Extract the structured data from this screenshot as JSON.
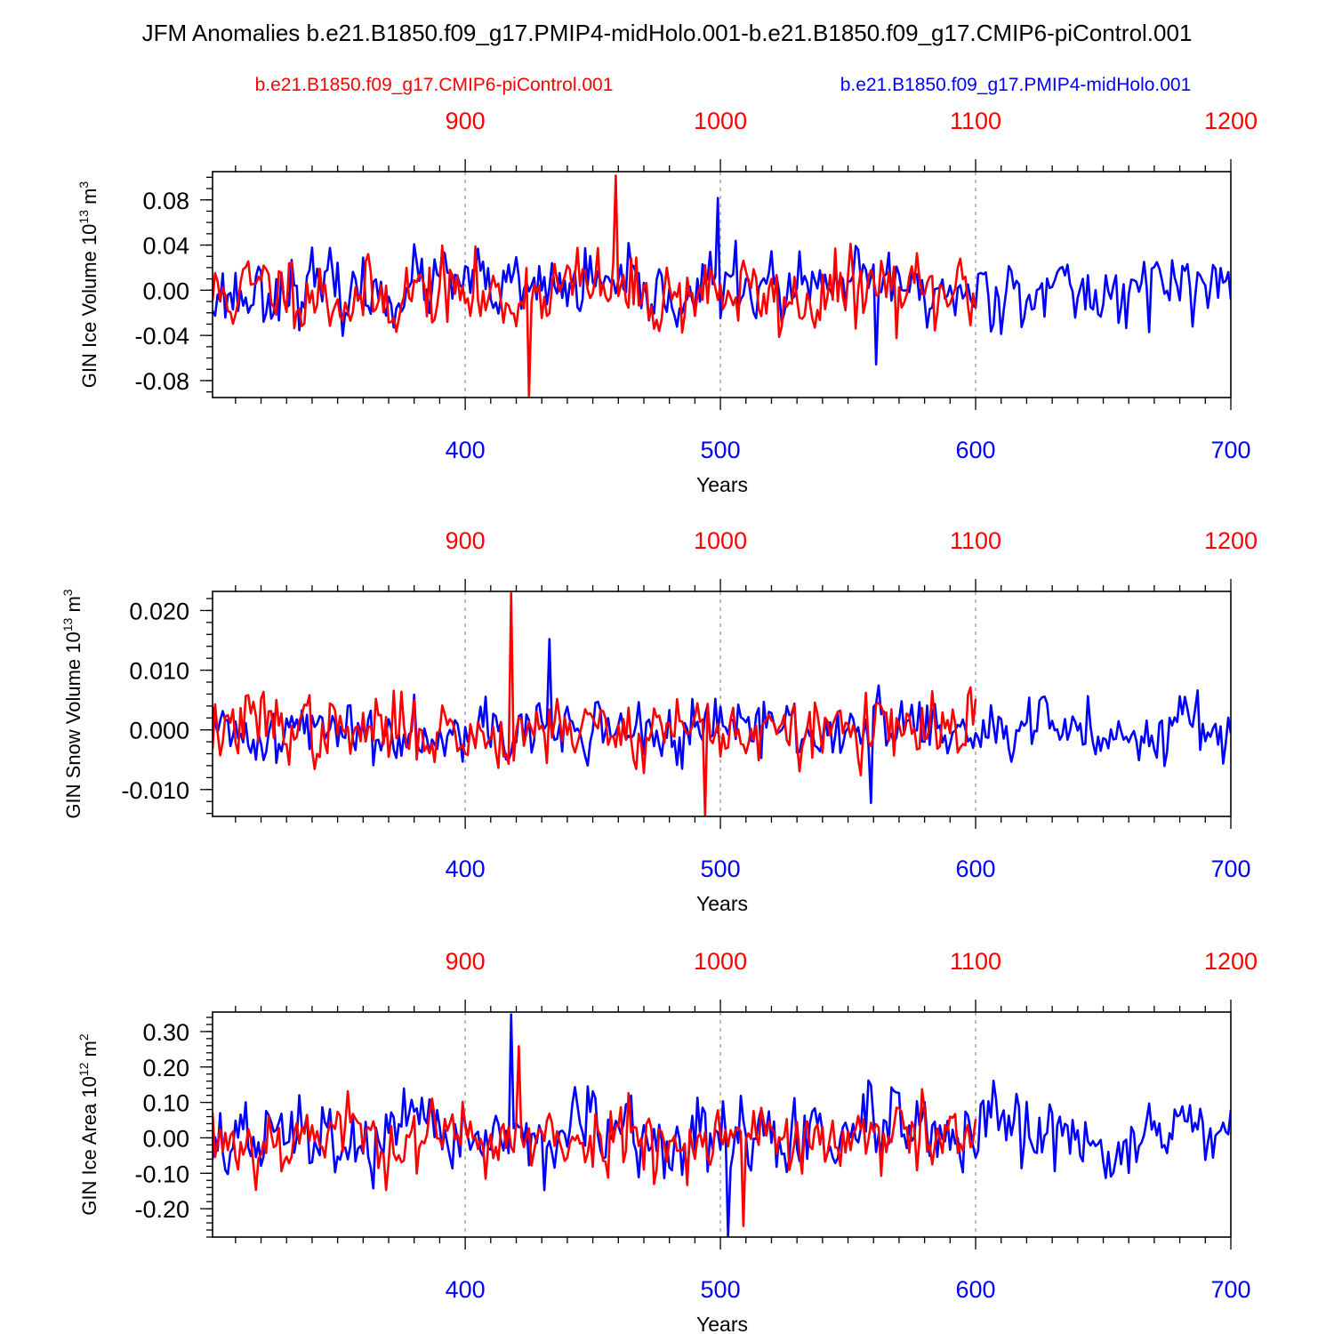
{
  "title": "JFM Anomalies b.e21.B1850.f09_g17.PMIP4-midHolo.001-b.e21.B1850.f09_g17.CMIP6-piControl.001",
  "legend": {
    "left_label": "b.e21.B1850.f09_g17.CMIP6-piControl.001",
    "right_label": "b.e21.B1850.f09_g17.PMIP4-midHolo.001"
  },
  "colors": {
    "control": "#ff0000",
    "midholo": "#0000ff",
    "axis": "#000000",
    "grid": "#999999"
  },
  "chart_data": [
    {
      "type": "line",
      "ylabel": "GIN Ice Volume 10",
      "ylabel_sup": "13",
      "ylabel_unit": " m",
      "ylabel_unit_sup": "3",
      "xlabel": "Years",
      "ylim": [
        -0.095,
        0.105
      ],
      "yticks": [
        -0.08,
        -0.04,
        0.0,
        0.04,
        0.08
      ],
      "ytick_labels": [
        "-0.08",
        "-0.04",
        "0.00",
        "0.04",
        "0.08"
      ],
      "yminor_step": 0.01,
      "x_bottom": {
        "range": [
          301,
          700
        ],
        "ticks": [
          400,
          500,
          600,
          700
        ],
        "labels": [
          "400",
          "500",
          "600",
          "700"
        ]
      },
      "x_top": {
        "range": [
          801,
          1200
        ],
        "ticks": [
          900,
          1000,
          1100,
          1200
        ],
        "labels": [
          "900",
          "1000",
          "1100",
          "1200"
        ]
      },
      "gridlines_at": [
        400,
        500,
        600
      ],
      "series": [
        {
          "name": "b.e21.B1850.f09_g17.CMIP6-piControl.001",
          "color": "#ff0000",
          "x_start": 801,
          "x_end": 1100,
          "amp": 0.03,
          "max": 0.102,
          "min": -0.094,
          "seed": 11,
          "bias": -0.003
        },
        {
          "name": "b.e21.B1850.f09_g17.PMIP4-midHolo.001",
          "color": "#0000ff",
          "x_start": 301,
          "x_end": 700,
          "amp": 0.026,
          "max": 0.082,
          "min": -0.066,
          "seed": 23,
          "bias": 0.001
        }
      ]
    },
    {
      "type": "line",
      "ylabel": "GIN Snow Volume 10",
      "ylabel_sup": "13",
      "ylabel_unit": " m",
      "ylabel_unit_sup": "3",
      "xlabel": "Years",
      "ylim": [
        -0.0145,
        0.0232
      ],
      "yticks": [
        -0.01,
        0.0,
        0.01,
        0.02
      ],
      "ytick_labels": [
        "-0.010",
        "0.000",
        "0.010",
        "0.020"
      ],
      "yminor_step": 0.002,
      "x_bottom": {
        "range": [
          301,
          700
        ],
        "ticks": [
          400,
          500,
          600,
          700
        ],
        "labels": [
          "400",
          "500",
          "600",
          "700"
        ]
      },
      "x_top": {
        "range": [
          801,
          1200
        ],
        "ticks": [
          900,
          1000,
          1100,
          1200
        ],
        "labels": [
          "900",
          "1000",
          "1100",
          "1200"
        ]
      },
      "gridlines_at": [
        400,
        500,
        600
      ],
      "series": [
        {
          "name": "b.e21.B1850.f09_g17.CMIP6-piControl.001",
          "color": "#ff0000",
          "x_start": 801,
          "x_end": 1100,
          "amp": 0.005,
          "max": 0.023,
          "min": -0.0145,
          "seed": 37,
          "bias": 0.0
        },
        {
          "name": "b.e21.B1850.f09_g17.PMIP4-midHolo.001",
          "color": "#0000ff",
          "x_start": 301,
          "x_end": 700,
          "amp": 0.0045,
          "max": 0.0153,
          "min": -0.0123,
          "seed": 41,
          "bias": 0.0
        }
      ]
    },
    {
      "type": "line",
      "ylabel": "GIN Ice Area 10",
      "ylabel_sup": "12",
      "ylabel_unit": " m",
      "ylabel_unit_sup": "2",
      "xlabel": "Years",
      "ylim": [
        -0.28,
        0.355
      ],
      "yticks": [
        -0.2,
        -0.1,
        0.0,
        0.1,
        0.2,
        0.3
      ],
      "ytick_labels": [
        "-0.20",
        "-0.10",
        "0.00",
        "0.10",
        "0.20",
        "0.30"
      ],
      "yminor_step": 0.02,
      "x_bottom": {
        "range": [
          301,
          700
        ],
        "ticks": [
          400,
          500,
          600,
          700
        ],
        "labels": [
          "400",
          "500",
          "600",
          "700"
        ]
      },
      "x_top": {
        "range": [
          801,
          1200
        ],
        "ticks": [
          900,
          1000,
          1100,
          1200
        ],
        "labels": [
          "900",
          "1000",
          "1100",
          "1200"
        ]
      },
      "gridlines_at": [
        400,
        500,
        600
      ],
      "series": [
        {
          "name": "b.e21.B1850.f09_g17.CMIP6-piControl.001",
          "color": "#ff0000",
          "x_start": 801,
          "x_end": 1100,
          "amp": 0.09,
          "max": 0.26,
          "min": -0.25,
          "seed": 53,
          "bias": 0.0
        },
        {
          "name": "b.e21.B1850.f09_g17.PMIP4-midHolo.001",
          "color": "#0000ff",
          "x_start": 301,
          "x_end": 700,
          "amp": 0.095,
          "max": 0.35,
          "min": -0.28,
          "seed": 67,
          "bias": 0.0
        }
      ]
    }
  ]
}
